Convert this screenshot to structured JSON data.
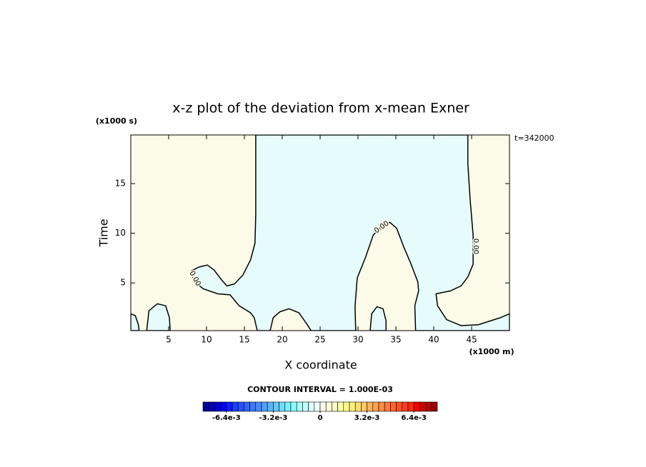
{
  "chart_data": {
    "type": "contour",
    "title": "x-z plot of the deviation from x-mean Exner",
    "xlabel": "X coordinate",
    "ylabel": "Time",
    "x_unit": "(x1000 m)",
    "y_unit": "(x1000 s)",
    "time_label": "t=342000",
    "xlim": [
      0,
      50
    ],
    "ylim": [
      0.2,
      19.9
    ],
    "xticks": [
      5,
      10,
      15,
      20,
      25,
      30,
      35,
      40,
      45
    ],
    "yticks": [
      5,
      10,
      15
    ],
    "background_color": "#fcfae8",
    "contour_color": "#000000",
    "regions": [
      {
        "color": "#e6fcfc",
        "x": [
          16.5,
          16.5,
          16.4,
          15.8,
          14.8,
          13.7,
          12.7,
          12.0,
          11.0,
          10.1,
          9.0,
          8.0,
          8.4,
          9.6,
          11.5,
          13.1,
          14.3,
          15.8,
          16.3,
          16.7,
          18.4,
          18.8,
          19.7,
          20.9,
          22.2,
          23.3,
          23.8,
          29.7,
          29.6,
          29.9,
          31.0,
          32.0,
          33.2,
          34.2,
          35.1,
          36.0,
          37.0,
          37.9,
          38.0,
          37.5,
          37.6,
          50,
          50,
          48.8,
          45.9,
          43.6,
          41.7,
          40.5,
          40.3,
          42.2,
          43.6,
          44.5,
          45.2,
          45.2,
          44.8,
          44.5,
          44.5
        ],
        "y": [
          19.9,
          11.9,
          9.0,
          7.3,
          5.8,
          4.9,
          4.7,
          5.3,
          6.3,
          6.8,
          6.6,
          6.2,
          5.1,
          4.4,
          3.9,
          3.8,
          2.7,
          2.0,
          1.5,
          0.2,
          0.2,
          1.5,
          2.1,
          2.4,
          2.0,
          0.8,
          0.2,
          0.2,
          2.6,
          5.5,
          7.6,
          9.8,
          10.8,
          11.1,
          10.5,
          8.7,
          6.9,
          5.1,
          4.2,
          2.7,
          0.2,
          0.2,
          1.9,
          1.5,
          0.8,
          0.7,
          1.3,
          2.7,
          3.9,
          4.2,
          4.7,
          5.6,
          6.9,
          9.8,
          13.4,
          17.0,
          19.9
        ]
      },
      {
        "color": "#e6fcfc",
        "x": [
          0,
          0.6,
          1.0,
          1.1,
          0
        ],
        "y": [
          1.9,
          1.7,
          0.8,
          0.2,
          0.2
        ]
      },
      {
        "color": "#e6fcfc",
        "x": [
          2.1,
          2.4,
          3.5,
          4.6,
          5.1,
          5.2
        ],
        "y": [
          0.2,
          2.2,
          2.9,
          2.7,
          1.5,
          0.2
        ]
      },
      {
        "color": "#e6fcfc",
        "x": [
          31.6,
          31.8,
          32.5,
          33.3,
          33.7,
          33.7
        ],
        "y": [
          0.2,
          1.9,
          2.6,
          2.4,
          1.2,
          0.2
        ]
      }
    ],
    "contour_labels": [
      "0.00",
      "0.00",
      "0.00"
    ],
    "colorbar": {
      "title": "CONTOUR INTERVAL = 1.000E-03",
      "lim": [
        -0.008,
        0.008
      ],
      "ticks": [
        {
          "value": -0.0064,
          "label": "-6.4e-3"
        },
        {
          "value": -0.0032,
          "label": "-3.2e-3"
        },
        0,
        {
          "value": 0.0032,
          "label": "3.2e-3"
        },
        {
          "value": 0.0064,
          "label": "6.4e-3"
        }
      ],
      "colors": [
        "#000096",
        "#0000b4",
        "#0000d2",
        "#0000f0",
        "#0a1eff",
        "#1e3cff",
        "#2850ff",
        "#3264ff",
        "#3c78ff",
        "#468cff",
        "#50a0ff",
        "#5ab4ff",
        "#64c8ff",
        "#6edcff",
        "#78f0ff",
        "#8cffff",
        "#a8ffff",
        "#c4ffff",
        "#dcffff",
        "#f0ffff",
        "#fffff0",
        "#ffffdc",
        "#ffffc4",
        "#ffffa8",
        "#ffff8c",
        "#fff078",
        "#ffdc6e",
        "#ffc864",
        "#ffb45a",
        "#ffa050",
        "#ff8c46",
        "#ff783c",
        "#ff6432",
        "#ff5028",
        "#ff3c1e",
        "#ff280a",
        "#f00000",
        "#d20000",
        "#b40000",
        "#960000"
      ]
    }
  }
}
